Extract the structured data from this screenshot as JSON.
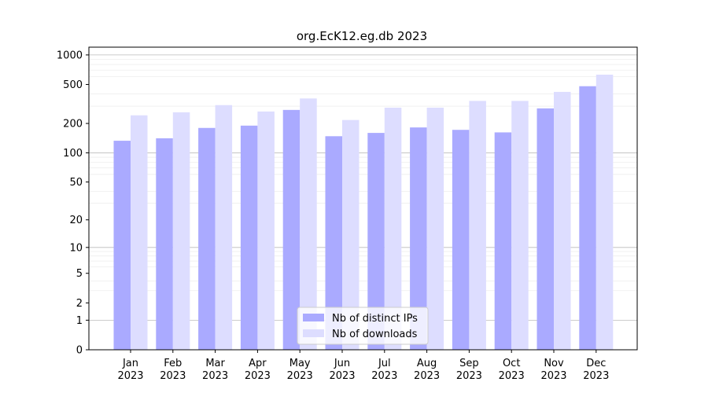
{
  "chart_data": {
    "type": "bar",
    "title": "org.EcK12.eg.db 2023",
    "xlabel": "",
    "ylabel": "",
    "y_scale": "log(1+y)",
    "ylim": [
      0,
      1200
    ],
    "y_ticks": [
      0,
      1,
      2,
      5,
      10,
      20,
      50,
      100,
      200,
      500,
      1000
    ],
    "grid": true,
    "legend_position": "bottom-center",
    "categories": [
      [
        "Jan",
        "2023"
      ],
      [
        "Feb",
        "2023"
      ],
      [
        "Mar",
        "2023"
      ],
      [
        "Apr",
        "2023"
      ],
      [
        "May",
        "2023"
      ],
      [
        "Jun",
        "2023"
      ],
      [
        "Jul",
        "2023"
      ],
      [
        "Aug",
        "2023"
      ],
      [
        "Sep",
        "2023"
      ],
      [
        "Oct",
        "2023"
      ],
      [
        "Nov",
        "2023"
      ],
      [
        "Dec",
        "2023"
      ]
    ],
    "series": [
      {
        "name": "Nb of distinct IPs",
        "color": "#aaaaff",
        "values": [
          133,
          141,
          180,
          190,
          275,
          148,
          160,
          182,
          172,
          162,
          285,
          480
        ]
      },
      {
        "name": "Nb of downloads",
        "color": "#ddddff",
        "values": [
          242,
          260,
          308,
          265,
          360,
          217,
          290,
          290,
          340,
          340,
          420,
          630
        ]
      }
    ]
  }
}
